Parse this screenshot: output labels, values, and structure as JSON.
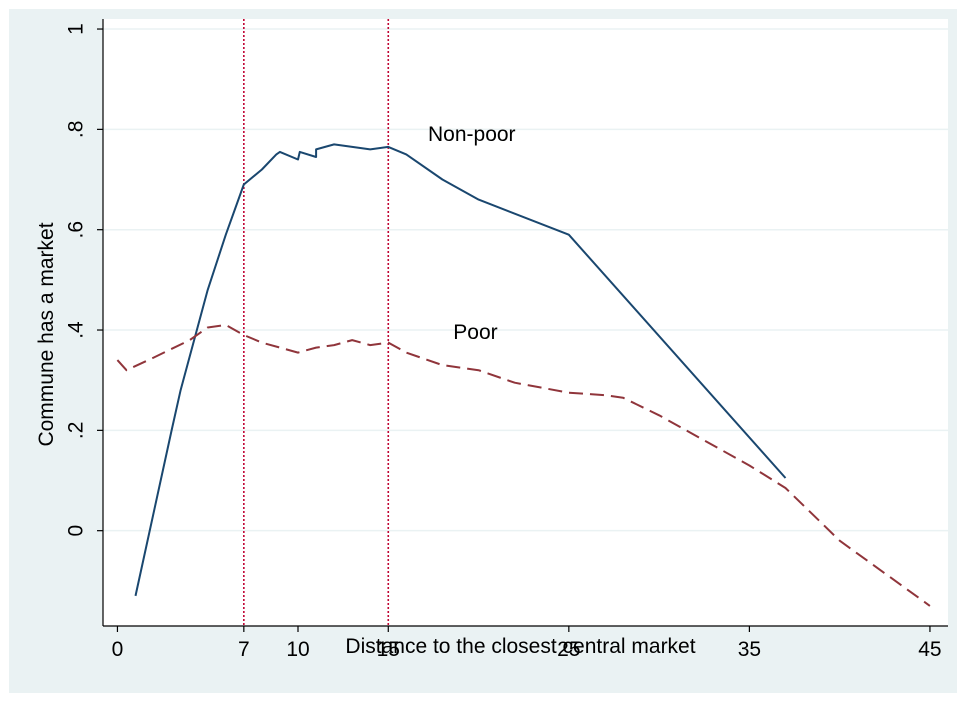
{
  "chart_data": {
    "type": "line",
    "xlabel": "Distance to the closest central market",
    "ylabel": "Commune has a market",
    "xlim": [
      -0.8,
      46
    ],
    "ylim": [
      -0.19,
      1.02
    ],
    "x_ticks": [
      0,
      7,
      10,
      15,
      25,
      35,
      45
    ],
    "y_ticks": [
      0,
      0.2,
      0.4,
      0.6,
      0.8,
      1
    ],
    "y_tick_labels": [
      "0",
      ".2",
      ".4",
      ".6",
      ".8",
      "1"
    ],
    "grid": true,
    "vlines": [
      7,
      15
    ],
    "series": [
      {
        "name": "Non-poor",
        "color": "#1a476f",
        "dash": "solid",
        "points": [
          [
            1,
            -0.13
          ],
          [
            3,
            0.2
          ],
          [
            3.5,
            0.28
          ],
          [
            5,
            0.48
          ],
          [
            6,
            0.59
          ],
          [
            6.5,
            0.64
          ],
          [
            7,
            0.69
          ],
          [
            8,
            0.72
          ],
          [
            8.8,
            0.75
          ],
          [
            9,
            0.755
          ],
          [
            10,
            0.74
          ],
          [
            10.1,
            0.755
          ],
          [
            11,
            0.745
          ],
          [
            11,
            0.76
          ],
          [
            12,
            0.77
          ],
          [
            14,
            0.76
          ],
          [
            15,
            0.765
          ],
          [
            16,
            0.75
          ],
          [
            18,
            0.7
          ],
          [
            20,
            0.66
          ],
          [
            25,
            0.59
          ],
          [
            37,
            0.105
          ]
        ]
      },
      {
        "name": "Poor",
        "color": "#90353b",
        "dash": "dashed",
        "points": [
          [
            0,
            0.34
          ],
          [
            0.5,
            0.32
          ],
          [
            2,
            0.345
          ],
          [
            4,
            0.38
          ],
          [
            5,
            0.405
          ],
          [
            6,
            0.41
          ],
          [
            7,
            0.39
          ],
          [
            8,
            0.375
          ],
          [
            9,
            0.365
          ],
          [
            10,
            0.355
          ],
          [
            11,
            0.365
          ],
          [
            12,
            0.37
          ],
          [
            13,
            0.38
          ],
          [
            14,
            0.37
          ],
          [
            15,
            0.375
          ],
          [
            16,
            0.355
          ],
          [
            18,
            0.33
          ],
          [
            20,
            0.32
          ],
          [
            22,
            0.295
          ],
          [
            25,
            0.275
          ],
          [
            27,
            0.27
          ],
          [
            28,
            0.265
          ],
          [
            30,
            0.23
          ],
          [
            35,
            0.13
          ],
          [
            37,
            0.085
          ],
          [
            40,
            -0.02
          ],
          [
            45,
            -0.15
          ]
        ]
      }
    ],
    "annotations": [
      {
        "text": "Non-poor",
        "x": 17.2,
        "y": 0.79
      },
      {
        "text": "Poor",
        "x": 18.6,
        "y": 0.395
      }
    ]
  }
}
